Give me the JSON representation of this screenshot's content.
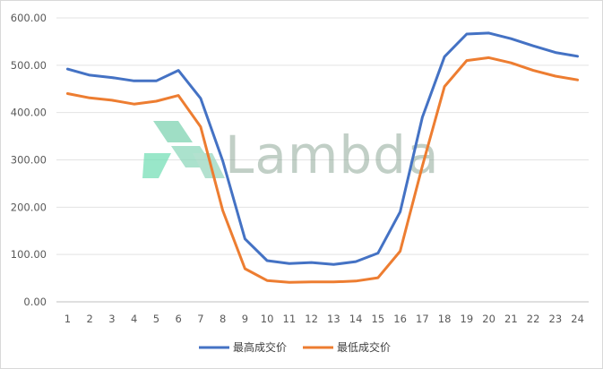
{
  "chart_data": {
    "type": "line",
    "title": "",
    "xlabel": "",
    "ylabel": "",
    "categories": [
      "1",
      "2",
      "3",
      "4",
      "5",
      "6",
      "7",
      "8",
      "9",
      "10",
      "11",
      "12",
      "13",
      "14",
      "15",
      "16",
      "17",
      "18",
      "19",
      "20",
      "21",
      "22",
      "23",
      "24"
    ],
    "ylim": [
      0,
      600
    ],
    "yticks": [
      "0.00",
      "100.00",
      "200.00",
      "300.00",
      "400.00",
      "500.00",
      "600.00"
    ],
    "grid": true,
    "legend_position": "bottom",
    "series": [
      {
        "name": "最高成交价",
        "color": "#4472c4",
        "values": [
          492,
          479,
          474,
          467,
          467,
          489,
          430,
          298,
          133,
          87,
          81,
          83,
          79,
          85,
          103,
          190,
          390,
          518,
          566,
          568,
          556,
          541,
          527,
          519
        ]
      },
      {
        "name": "最低成交价",
        "color": "#ed7d31",
        "values": [
          440,
          431,
          426,
          418,
          424,
          436,
          370,
          193,
          70,
          45,
          41,
          42,
          42,
          44,
          51,
          107,
          287,
          455,
          510,
          516,
          505,
          489,
          477,
          469
        ]
      }
    ]
  },
  "watermark": {
    "text": "Lambda"
  }
}
